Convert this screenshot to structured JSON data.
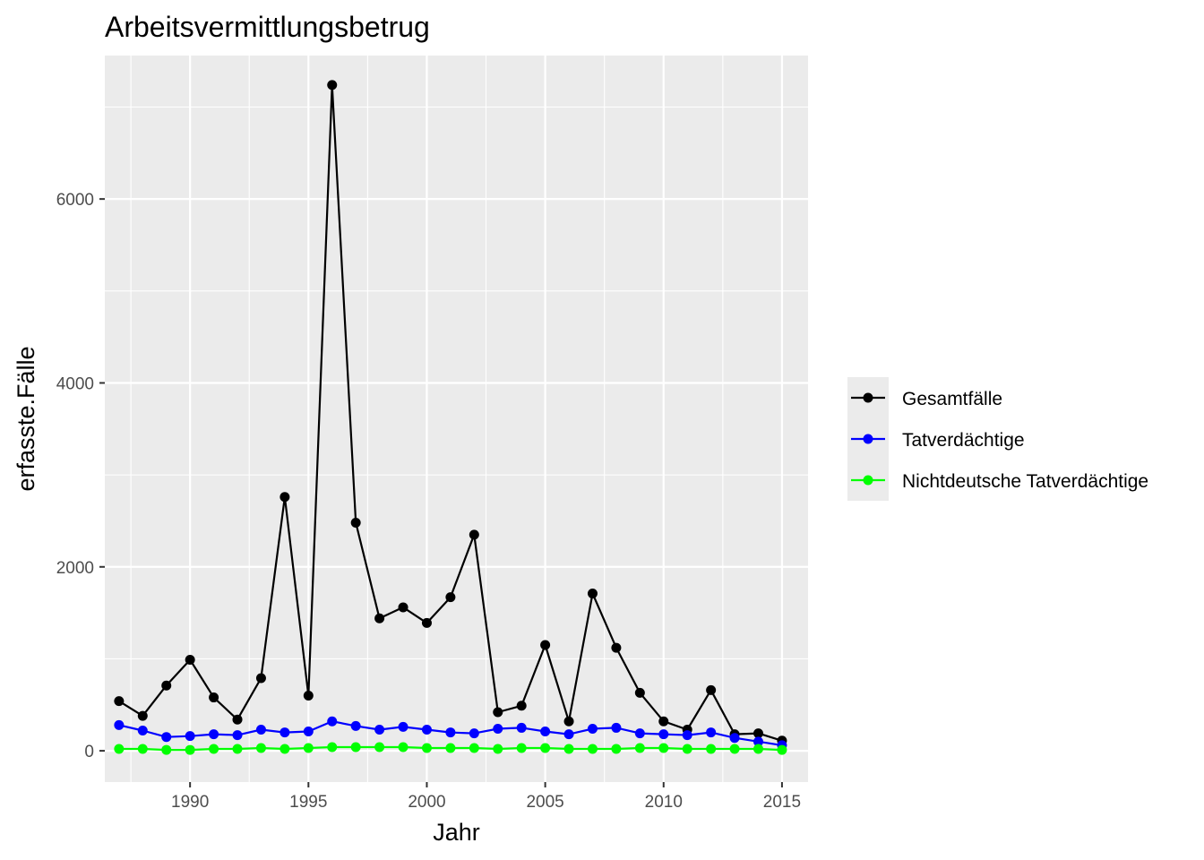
{
  "chart_data": {
    "type": "line",
    "title": "Arbeitsvermittlungsbetrug",
    "xlabel": "Jahr",
    "ylabel": "erfasste.Fälle",
    "x": [
      1987,
      1988,
      1989,
      1990,
      1991,
      1992,
      1993,
      1994,
      1995,
      1996,
      1997,
      1998,
      1999,
      2000,
      2001,
      2002,
      2003,
      2004,
      2005,
      2006,
      2007,
      2008,
      2009,
      2010,
      2011,
      2012,
      2013,
      2014,
      2015
    ],
    "xlim": [
      1986.4,
      2016.1
    ],
    "ylim": [
      -340,
      7560
    ],
    "xticks": [
      1990,
      1995,
      2000,
      2005,
      2010,
      2015
    ],
    "xtick_labels": [
      "1990",
      "1995",
      "2000",
      "2005",
      "2010",
      "2015"
    ],
    "yticks": [
      0,
      2000,
      4000,
      6000
    ],
    "ytick_labels": [
      "0",
      "2000",
      "4000",
      "6000"
    ],
    "grid": true,
    "legend_position": "right",
    "series": [
      {
        "name": "Gesamtfälle",
        "color": "#000000",
        "values": [
          540,
          380,
          710,
          990,
          580,
          340,
          790,
          2760,
          600,
          7240,
          2480,
          1440,
          1560,
          1390,
          1670,
          2350,
          420,
          490,
          1150,
          320,
          1710,
          1120,
          630,
          320,
          230,
          660,
          180,
          190,
          110
        ]
      },
      {
        "name": "Tatverdächtige",
        "color": "#0000ff",
        "values": [
          280,
          220,
          150,
          160,
          180,
          170,
          230,
          200,
          210,
          320,
          270,
          230,
          260,
          230,
          200,
          190,
          240,
          250,
          210,
          180,
          240,
          250,
          190,
          180,
          170,
          200,
          140,
          100,
          60
        ]
      },
      {
        "name": "Nichtdeutsche Tatverdächtige",
        "color": "#00ff00",
        "values": [
          20,
          20,
          10,
          10,
          20,
          20,
          30,
          20,
          30,
          40,
          40,
          40,
          40,
          30,
          30,
          30,
          20,
          30,
          30,
          20,
          20,
          20,
          30,
          30,
          20,
          20,
          20,
          20,
          10
        ]
      }
    ]
  }
}
